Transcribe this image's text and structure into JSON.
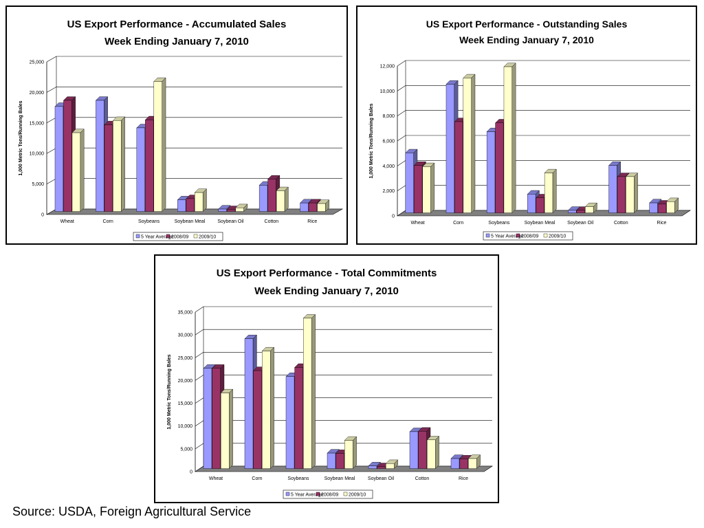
{
  "source_note": "Source: USDA, Foreign Agricultural Service",
  "colors": {
    "5 Year Average": "#9999ff",
    "2008/09": "#993366",
    "2009/10": "#ffffcc"
  },
  "chart_data": [
    {
      "type": "bar",
      "title": "US Export Performance - Accumulated Sales",
      "subtitle": "Week Ending January 7, 2010",
      "ylabel": "1,000 Metric Tons/Running Bales",
      "xlabel": "",
      "categories": [
        "Wheat",
        "Corn",
        "Soybeans",
        "Soybean Meal",
        "Soybean Oil",
        "Cotton",
        "Rice"
      ],
      "ylim": [
        0,
        25000
      ],
      "yticks": [
        "0",
        "5,000",
        "10,000",
        "15,000",
        "20,000",
        "25,000"
      ],
      "grid": true,
      "legend": "bottom",
      "series": [
        {
          "name": "5 Year Average",
          "values": [
            17200,
            18200,
            13700,
            1900,
            400,
            4300,
            1400
          ]
        },
        {
          "name": "2008/09",
          "values": [
            18200,
            14200,
            15000,
            2100,
            300,
            5300,
            1400
          ]
        },
        {
          "name": "2009/10",
          "values": [
            12900,
            14900,
            21300,
            3100,
            600,
            3400,
            1300
          ]
        }
      ]
    },
    {
      "type": "bar",
      "title": "US Export Performance - Outstanding Sales",
      "subtitle": "Week Ending January 7, 2010",
      "ylabel": "1,000 Metric Tons/Running Bales",
      "xlabel": "",
      "categories": [
        "Wheat",
        "Corn",
        "Soybeans",
        "Soybean Meal",
        "Soybean Oil",
        "Cotton",
        "Rice"
      ],
      "ylim": [
        0,
        12000
      ],
      "yticks": [
        "0",
        "2,000",
        "4,000",
        "6,000",
        "8,000",
        "10,000",
        "12,000"
      ],
      "grid": true,
      "legend": "bottom",
      "series": [
        {
          "name": "5 Year Average",
          "values": [
            4800,
            10300,
            6500,
            1500,
            200,
            3800,
            800
          ]
        },
        {
          "name": "2008/09",
          "values": [
            3800,
            7300,
            7200,
            1200,
            200,
            2900,
            700
          ]
        },
        {
          "name": "2009/10",
          "values": [
            3700,
            10800,
            11700,
            3200,
            500,
            2900,
            900
          ]
        }
      ]
    },
    {
      "type": "bar",
      "title": "US Export Performance - Total Commitments",
      "subtitle": "Week Ending January 7, 2010",
      "ylabel": "1,000 Metric Tons/Running Bales",
      "xlabel": "",
      "categories": [
        "Wheat",
        "Corn",
        "Soybeans",
        "Soybean Meal",
        "Soybean Oil",
        "Cotton",
        "Rice"
      ],
      "ylim": [
        0,
        35000
      ],
      "yticks": [
        "0",
        "5,000",
        "10,000",
        "15,000",
        "20,000",
        "25,000",
        "30,000",
        "35,000"
      ],
      "grid": true,
      "legend": "bottom",
      "series": [
        {
          "name": "5 Year Average",
          "values": [
            22000,
            28500,
            20200,
            3400,
            600,
            8100,
            2200
          ]
        },
        {
          "name": "2008/09",
          "values": [
            22000,
            21500,
            22200,
            3300,
            400,
            8200,
            2100
          ]
        },
        {
          "name": "2009/10",
          "values": [
            16600,
            25800,
            33000,
            6200,
            1100,
            6300,
            2200
          ]
        }
      ]
    }
  ]
}
